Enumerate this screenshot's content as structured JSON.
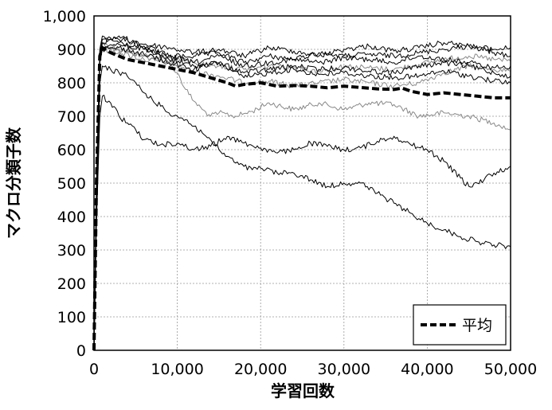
{
  "chart_data": {
    "type": "line",
    "title": "",
    "xlabel": "学習回数",
    "ylabel": "マクロ分類子数",
    "xlim": [
      0,
      50000
    ],
    "ylim": [
      0,
      1000
    ],
    "x_ticks": [
      0,
      10000,
      20000,
      30000,
      40000,
      50000
    ],
    "x_tick_labels": [
      "0",
      "10,000",
      "20,000",
      "30,000",
      "40,000",
      "50,000"
    ],
    "y_ticks": [
      0,
      100,
      200,
      300,
      400,
      500,
      600,
      700,
      800,
      900,
      1000
    ],
    "y_tick_labels": [
      "0",
      "100",
      "200",
      "300",
      "400",
      "500",
      "600",
      "700",
      "800",
      "900",
      "1,000"
    ],
    "grid": true,
    "legend_position": "bottom-right",
    "legend": [
      "平均"
    ],
    "series": [
      {
        "name": "平均",
        "style": "dashed",
        "color": "#000000",
        "x": [
          0,
          300,
          700,
          1000,
          2000,
          4000,
          6000,
          8000,
          10000,
          12000,
          14000,
          16000,
          17000,
          18000,
          20000,
          22000,
          24000,
          26000,
          28000,
          30000,
          32000,
          34000,
          36000,
          37000,
          38000,
          40000,
          42000,
          44000,
          46000,
          48000,
          50000
        ],
        "y": [
          0,
          500,
          880,
          905,
          890,
          870,
          860,
          850,
          840,
          830,
          815,
          800,
          790,
          795,
          800,
          790,
          792,
          790,
          785,
          790,
          786,
          782,
          780,
          784,
          775,
          765,
          770,
          765,
          760,
          755,
          755
        ]
      },
      {
        "style": "thin",
        "color": "#000000",
        "x": [
          0,
          300,
          700,
          1000,
          3000,
          6000,
          9000,
          12000,
          15000,
          18000,
          21000,
          24000,
          27000,
          30000,
          33000,
          36000,
          39000,
          42000,
          45000,
          48000,
          50000
        ],
        "y": [
          0,
          500,
          900,
          940,
          920,
          900,
          880,
          880,
          890,
          860,
          880,
          870,
          890,
          880,
          885,
          880,
          890,
          900,
          910,
          900,
          905
        ]
      },
      {
        "style": "thin",
        "color": "#000000",
        "x": [
          0,
          300,
          700,
          1000,
          3000,
          6000,
          9000,
          12000,
          15000,
          18000,
          21000,
          24000,
          27000,
          30000,
          33000,
          36000,
          39000,
          42000,
          45000,
          48000,
          50000
        ],
        "y": [
          0,
          480,
          890,
          930,
          930,
          915,
          905,
          890,
          900,
          880,
          905,
          895,
          880,
          900,
          910,
          895,
          905,
          920,
          910,
          890,
          880
        ]
      },
      {
        "style": "thin",
        "color": "#000000",
        "x": [
          0,
          300,
          700,
          1000,
          3000,
          6000,
          9000,
          12000,
          15000,
          18000,
          21000,
          24000,
          27000,
          30000,
          33000,
          36000,
          39000,
          42000,
          45000,
          48000,
          50000
        ],
        "y": [
          0,
          470,
          880,
          920,
          940,
          910,
          880,
          860,
          880,
          850,
          860,
          870,
          860,
          875,
          870,
          860,
          880,
          870,
          860,
          845,
          850
        ]
      },
      {
        "style": "thin",
        "color": "#000000",
        "x": [
          0,
          300,
          700,
          1000,
          3000,
          6000,
          9000,
          12000,
          15000,
          18000,
          21000,
          24000,
          27000,
          30000,
          33000,
          36000,
          39000,
          42000,
          45000,
          48000,
          50000
        ],
        "y": [
          0,
          460,
          870,
          910,
          915,
          900,
          870,
          850,
          860,
          830,
          840,
          850,
          840,
          845,
          835,
          830,
          850,
          860,
          850,
          830,
          820
        ]
      },
      {
        "style": "thin",
        "color": "#000000",
        "x": [
          0,
          300,
          700,
          1000,
          3000,
          6000,
          9000,
          12000,
          15000,
          18000,
          21000,
          24000,
          27000,
          30000,
          33000,
          36000,
          39000,
          42000,
          45000,
          48000,
          50000
        ],
        "y": [
          0,
          450,
          860,
          900,
          905,
          885,
          860,
          840,
          860,
          815,
          830,
          840,
          825,
          830,
          820,
          815,
          820,
          835,
          820,
          805,
          800
        ]
      },
      {
        "style": "thin",
        "color": "#000000",
        "x": [
          0,
          300,
          700,
          1000,
          2000,
          3000,
          4000,
          5000,
          6000,
          7000,
          8000,
          9000,
          10000,
          11000,
          12000,
          13000,
          14000,
          15000,
          16000,
          17000,
          18000,
          19000,
          20000,
          22000,
          24000,
          26000,
          28000,
          30000,
          32000,
          34000,
          36000,
          38000,
          40000,
          42000,
          44000,
          46000,
          48000,
          50000
        ],
        "y": [
          0,
          400,
          800,
          850,
          840,
          830,
          820,
          800,
          770,
          750,
          730,
          710,
          700,
          690,
          670,
          650,
          630,
          600,
          580,
          560,
          550,
          540,
          545,
          530,
          530,
          510,
          490,
          500,
          500,
          470,
          440,
          410,
          380,
          360,
          340,
          325,
          315,
          310
        ]
      },
      {
        "style": "thin",
        "color": "#000000",
        "x": [
          0,
          300,
          700,
          1000,
          2000,
          3000,
          4000,
          5000,
          6000,
          8000,
          10000,
          12000,
          14000,
          16000,
          18000,
          20000,
          22000,
          24000,
          26000,
          28000,
          30000,
          32000,
          34000,
          36000,
          38000,
          40000,
          42000,
          44000,
          45000,
          46000,
          48000,
          50000
        ],
        "y": [
          0,
          380,
          700,
          760,
          740,
          700,
          680,
          660,
          630,
          615,
          620,
          600,
          610,
          640,
          620,
          605,
          590,
          600,
          620,
          610,
          600,
          605,
          625,
          640,
          615,
          600,
          565,
          515,
          490,
          500,
          530,
          550
        ]
      },
      {
        "style": "thin",
        "color": "#888888",
        "x": [
          0,
          300,
          700,
          1000,
          3000,
          6000,
          9000,
          10000,
          11000,
          12000,
          13000,
          14000,
          15000,
          17000,
          19000,
          21000,
          24000,
          27000,
          30000,
          33000,
          36000,
          39000,
          42000,
          45000,
          48000,
          50000
        ],
        "y": [
          0,
          470,
          880,
          920,
          900,
          880,
          860,
          830,
          780,
          745,
          720,
          700,
          710,
          700,
          715,
          740,
          720,
          740,
          720,
          740,
          735,
          700,
          710,
          700,
          680,
          660
        ]
      },
      {
        "style": "thin",
        "color": "#888888",
        "x": [
          0,
          300,
          700,
          1000,
          3000,
          6000,
          9000,
          12000,
          15000,
          18000,
          21000,
          24000,
          27000,
          30000,
          33000,
          36000,
          39000,
          42000,
          45000,
          48000,
          50000
        ],
        "y": [
          0,
          460,
          870,
          900,
          890,
          870,
          860,
          835,
          820,
          800,
          805,
          790,
          800,
          810,
          800,
          790,
          800,
          830,
          850,
          840,
          835
        ]
      },
      {
        "style": "thin",
        "color": "#888888",
        "x": [
          0,
          300,
          700,
          1000,
          3000,
          6000,
          9000,
          12000,
          15000,
          18000,
          21000,
          24000,
          27000,
          30000,
          33000,
          36000,
          39000,
          42000,
          45000,
          48000,
          50000
        ],
        "y": [
          0,
          470,
          880,
          915,
          895,
          880,
          875,
          860,
          850,
          840,
          850,
          845,
          835,
          850,
          845,
          840,
          855,
          870,
          880,
          870,
          865
        ]
      }
    ]
  }
}
